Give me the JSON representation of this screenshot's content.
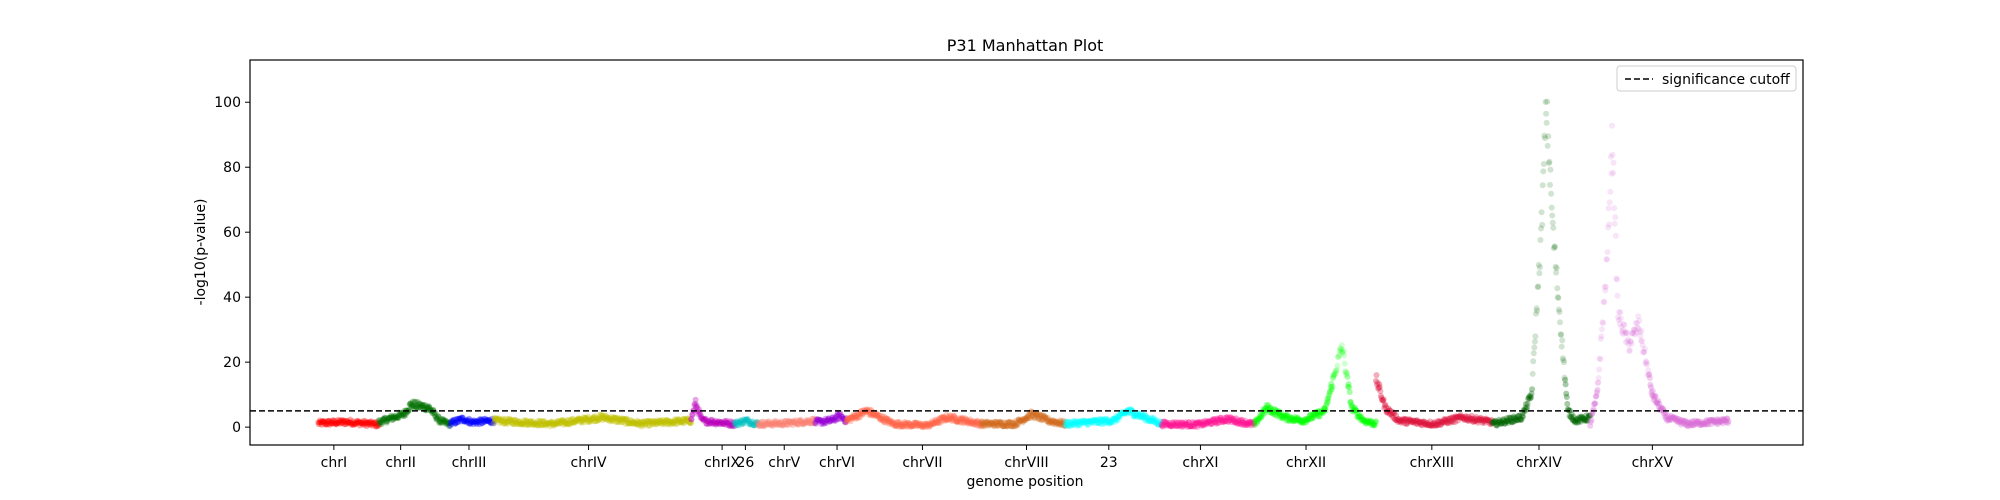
{
  "chart_data": {
    "type": "scatter",
    "title": "P31 Manhattan Plot",
    "xlabel": "genome position",
    "ylabel": "-log10(p-value)",
    "ylim": [
      -5.5,
      113
    ],
    "yticks": [
      0,
      20,
      40,
      60,
      80,
      100
    ],
    "grid": false,
    "legend": {
      "position": "top-right",
      "entries": [
        {
          "label": "significance cutoff",
          "style": "dashed",
          "color": "#000000"
        }
      ]
    },
    "cutoff": 5,
    "xlim": [
      0,
      100
    ],
    "chromosomes": [
      {
        "name": "chrI",
        "label": "chrI",
        "start": 4.4,
        "end": 8.3,
        "center": 5.4,
        "color": "#ff0000",
        "profile": [
          [
            0,
            1.2
          ],
          [
            0.5,
            1.6
          ],
          [
            1,
            0.8
          ]
        ]
      },
      {
        "name": "chrII",
        "label": "chrII",
        "start": 8.3,
        "end": 12.9,
        "center": 9.7,
        "color": "#007000",
        "profile": [
          [
            0,
            1.5
          ],
          [
            0.35,
            4
          ],
          [
            0.45,
            7
          ],
          [
            0.7,
            6
          ],
          [
            0.85,
            2
          ],
          [
            1,
            0.8
          ]
        ]
      },
      {
        "name": "chrIII",
        "label": "chrIII",
        "start": 12.9,
        "end": 15.7,
        "center": 14.1,
        "color": "#0000ff",
        "profile": [
          [
            0,
            1.2
          ],
          [
            0.3,
            2.5
          ],
          [
            0.5,
            1.5
          ],
          [
            1,
            2
          ]
        ]
      },
      {
        "name": "chrIV",
        "label": "chrIV",
        "start": 15.7,
        "end": 28.4,
        "center": 21.8,
        "color": "#c0c000",
        "profile": [
          [
            0,
            2
          ],
          [
            0.3,
            1
          ],
          [
            0.55,
            3
          ],
          [
            0.75,
            1
          ],
          [
            1,
            2
          ]
        ]
      },
      {
        "name": "chrIX",
        "label": "chrIX",
        "start": 28.4,
        "end": 31.2,
        "center": 30.4,
        "color": "#bb00bb",
        "profile": [
          [
            0,
            2
          ],
          [
            0.1,
            7.5
          ],
          [
            0.25,
            2
          ],
          [
            1,
            1
          ]
        ]
      },
      {
        "name": "26",
        "label": "26",
        "start": 31.2,
        "end": 32.7,
        "center": 31.9,
        "color": "#00c0c0",
        "profile": [
          [
            0,
            1
          ],
          [
            0.5,
            2
          ],
          [
            1,
            1
          ]
        ]
      },
      {
        "name": "chrV",
        "label": "chrV",
        "start": 32.7,
        "end": 36.4,
        "center": 34.4,
        "color": "#fa8072",
        "profile": [
          [
            0,
            1
          ],
          [
            0.5,
            1.2
          ],
          [
            1,
            2
          ]
        ]
      },
      {
        "name": "chrVI",
        "label": "chrVI",
        "start": 36.4,
        "end": 38.4,
        "center": 37.8,
        "color": "#9400d3",
        "profile": [
          [
            0,
            1.5
          ],
          [
            0.5,
            2
          ],
          [
            0.8,
            3.5
          ],
          [
            1,
            2
          ]
        ]
      },
      {
        "name": "chrVII",
        "label": "chrVII",
        "start": 38.4,
        "end": 47.1,
        "center": 43.3,
        "color": "#ff6347",
        "profile": [
          [
            0,
            2
          ],
          [
            0.15,
            5
          ],
          [
            0.35,
            1
          ],
          [
            0.6,
            0.5
          ],
          [
            0.75,
            3
          ],
          [
            1,
            1
          ]
        ]
      },
      {
        "name": "chrVIII",
        "label": "chrVIII",
        "start": 47.1,
        "end": 52.5,
        "center": 50.0,
        "color": "#d2691e",
        "profile": [
          [
            0,
            1
          ],
          [
            0.4,
            1
          ],
          [
            0.6,
            4
          ],
          [
            0.8,
            2
          ],
          [
            1,
            1
          ]
        ]
      },
      {
        "name": "23",
        "label": "23",
        "start": 52.5,
        "end": 58.7,
        "center": 55.3,
        "color": "#00ffff",
        "profile": [
          [
            0,
            1
          ],
          [
            0.5,
            2
          ],
          [
            0.65,
            5
          ],
          [
            1,
            1
          ]
        ]
      },
      {
        "name": "chrXI",
        "label": "chrXI",
        "start": 58.7,
        "end": 64.7,
        "center": 61.2,
        "color": "#ff1493",
        "profile": [
          [
            0,
            1
          ],
          [
            0.4,
            0.8
          ],
          [
            0.7,
            2.5
          ],
          [
            1,
            0.8
          ]
        ]
      },
      {
        "name": "chrXII",
        "label": "chrXII",
        "start": 64.7,
        "end": 72.5,
        "center": 68.0,
        "color": "#00ff00",
        "profile": [
          [
            0,
            1
          ],
          [
            0.1,
            6
          ],
          [
            0.25,
            3
          ],
          [
            0.4,
            2
          ],
          [
            0.58,
            5
          ],
          [
            0.72,
            25
          ],
          [
            0.8,
            6
          ],
          [
            0.9,
            2
          ],
          [
            1,
            1
          ]
        ]
      },
      {
        "name": "chrXIII",
        "label": "chrXIII",
        "start": 72.5,
        "end": 80.0,
        "center": 76.1,
        "color": "#dc143c",
        "profile": [
          [
            0,
            15
          ],
          [
            0.08,
            6
          ],
          [
            0.2,
            2
          ],
          [
            0.5,
            1
          ],
          [
            0.75,
            3
          ],
          [
            1,
            1.5
          ]
        ]
      },
      {
        "name": "chrXIV",
        "label": "chrXIV",
        "start": 80.0,
        "end": 86.3,
        "center": 83.0,
        "color": "#006400",
        "profile": [
          [
            0,
            1
          ],
          [
            0.3,
            3
          ],
          [
            0.4,
            10
          ],
          [
            0.5,
            60
          ],
          [
            0.55,
            100
          ],
          [
            0.62,
            60
          ],
          [
            0.7,
            30
          ],
          [
            0.77,
            5
          ],
          [
            0.85,
            2
          ],
          [
            1,
            3
          ]
        ]
      },
      {
        "name": "chrXV",
        "label": "chrXV",
        "start": 86.3,
        "end": 95.2,
        "center": 90.3,
        "color": "#da70d6",
        "profile": [
          [
            0,
            1
          ],
          [
            0.05,
            10
          ],
          [
            0.12,
            50
          ],
          [
            0.16,
            90
          ],
          [
            0.2,
            35
          ],
          [
            0.28,
            25
          ],
          [
            0.35,
            32
          ],
          [
            0.45,
            10
          ],
          [
            0.55,
            3
          ],
          [
            0.7,
            1
          ],
          [
            1,
            2
          ]
        ]
      }
    ]
  }
}
